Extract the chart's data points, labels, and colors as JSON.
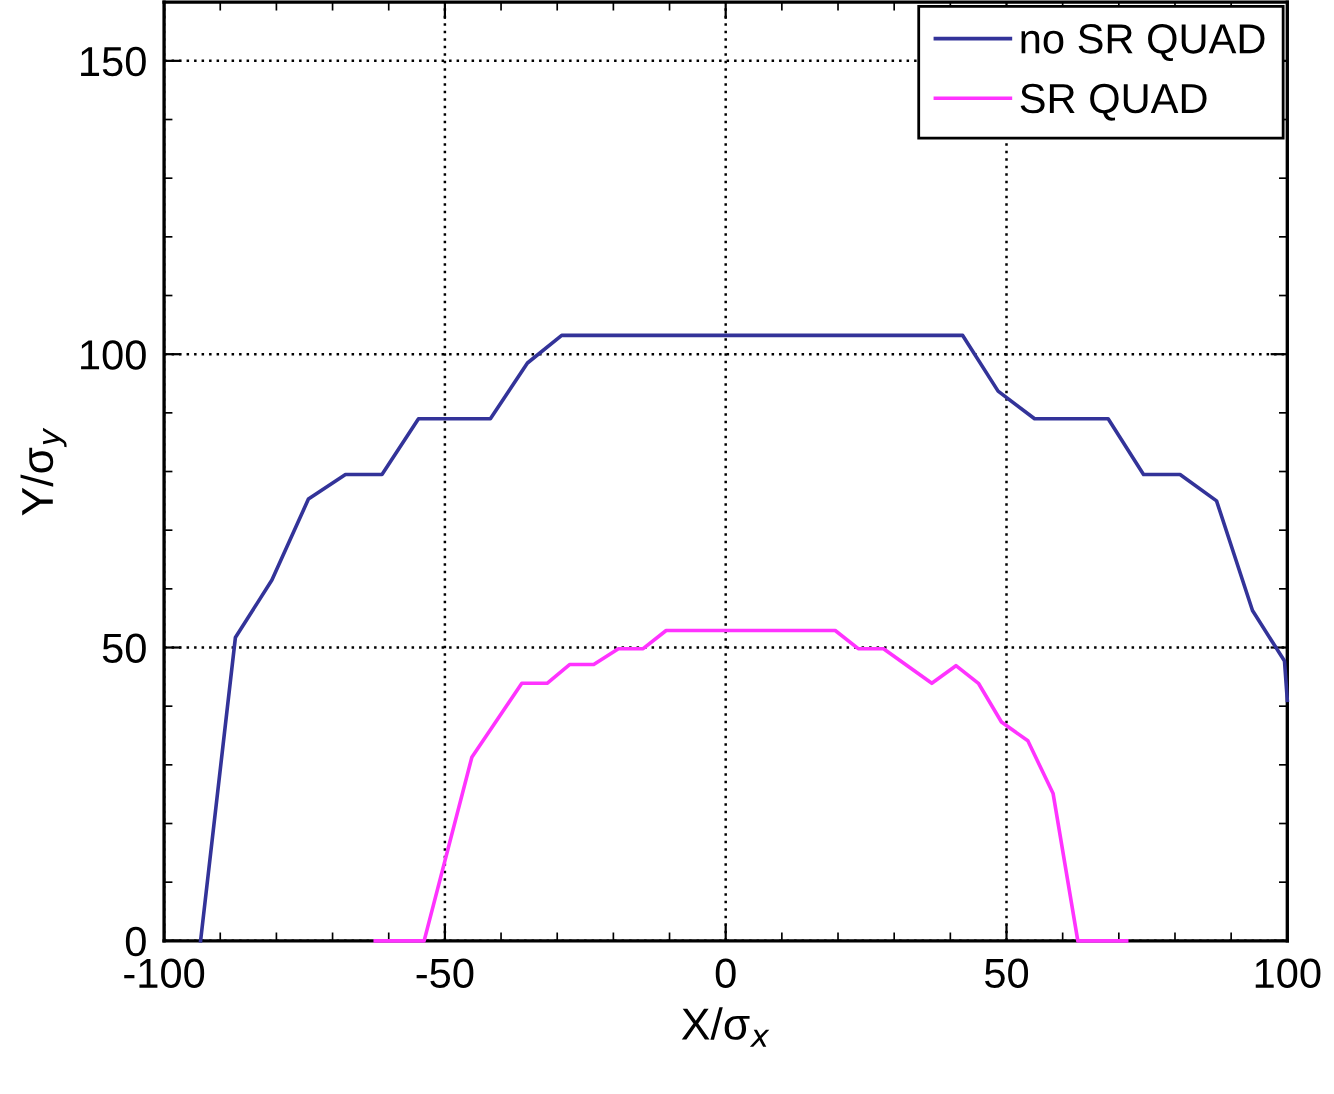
{
  "chart_data": {
    "type": "line",
    "xlabel": "X/σ$_{x}$",
    "ylabel": "Y/σ$_{y}$",
    "xlim": [
      -100,
      100
    ],
    "ylim": [
      0,
      160
    ],
    "xticks": [
      -100,
      -50,
      0,
      50,
      100
    ],
    "yticks": [
      0,
      50,
      100,
      150
    ],
    "grid": true,
    "legend": "top right",
    "line_style": "solid",
    "marker": "none",
    "series": [
      {
        "name": "no SR QUAD",
        "color": "#333399",
        "x": [
          -93.5,
          -87.3,
          -80.8,
          -74.3,
          -67.7,
          -61.2,
          -54.7,
          -41.9,
          -35.3,
          -29.2,
          42.2,
          48.5,
          55.0,
          68.1,
          74.4,
          80.9,
          87.4,
          93.8,
          99.5,
          100
        ],
        "values": [
          0,
          51.7,
          61.5,
          75.3,
          79.5,
          79.5,
          89,
          89,
          98.5,
          103.2,
          103.2,
          93.7,
          89,
          89,
          79.5,
          79.5,
          75,
          56.3,
          47.7,
          41
        ]
      },
      {
        "name": "SR QUAD",
        "color": "#ff33ff",
        "x": [
          -62.4,
          -53.7,
          -45.2,
          -36.3,
          -31.8,
          -27.8,
          -23.5,
          -19.1,
          -14.7,
          -10.6,
          19.5,
          23.6,
          28.1,
          36.7,
          41.0,
          45.0,
          49.1,
          53.8,
          58.3,
          62.7,
          71.4
        ],
        "values": [
          0,
          0,
          31.3,
          43.9,
          43.9,
          47.1,
          47.1,
          49.8,
          49.8,
          52.9,
          52.9,
          49.8,
          49.8,
          43.9,
          46.9,
          43.9,
          37.3,
          34.1,
          25.1,
          0,
          0
        ]
      }
    ]
  }
}
